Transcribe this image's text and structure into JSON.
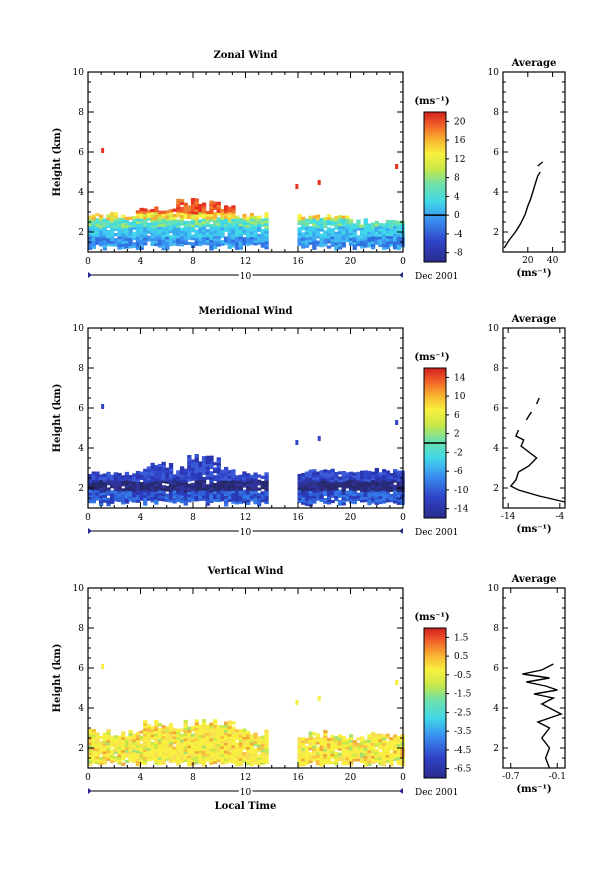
{
  "chart_data": [
    {
      "type": "heatmap",
      "title": "Zonal Wind",
      "xlabel": "",
      "ylabel": "Height (km)",
      "xlim": [
        0,
        24
      ],
      "ylim": [
        1,
        10
      ],
      "x_ticks": [
        "0",
        "4",
        "8",
        "12",
        "16",
        "20",
        "0"
      ],
      "y_ticks": [
        "2",
        "4",
        "6",
        "8",
        "10"
      ],
      "date_axis": {
        "day": "10",
        "label": "Dec 2001"
      },
      "colorbar": {
        "unit": "(ms⁻¹)",
        "ticks": [
          "-8",
          "-4",
          "0",
          "4",
          "8",
          "12",
          "16",
          "20"
        ],
        "range": [
          -10,
          22
        ],
        "zero_line_at": 0
      },
      "data_coverage": {
        "gaps_hours": [
          [
            13.5,
            15.8
          ]
        ],
        "height_range_km": [
          1.0,
          3.5
        ]
      },
      "profile": {
        "title": "Average",
        "xlabel": "(ms⁻¹)",
        "x_ticks": [
          "20",
          "40"
        ],
        "xlim": [
          0,
          50
        ],
        "y_ticks": [
          "2",
          "4",
          "6",
          "8",
          "10"
        ],
        "ylim": [
          1,
          10
        ],
        "segments": [
          [
            [
              1,
              1.2
            ],
            [
              5,
              1.6
            ],
            [
              10,
              2.0
            ],
            [
              14,
              2.4
            ],
            [
              18,
              2.9
            ],
            [
              20,
              3.3
            ],
            [
              22,
              3.6
            ],
            [
              24,
              4.0
            ],
            [
              26,
              4.4
            ],
            [
              28,
              4.8
            ],
            [
              30,
              5.0
            ]
          ],
          [
            [
              28,
              5.3
            ],
            [
              32,
              5.5
            ]
          ]
        ]
      }
    },
    {
      "type": "heatmap",
      "title": "Meridional Wind",
      "xlabel": "",
      "ylabel": "Height (km)",
      "xlim": [
        0,
        24
      ],
      "ylim": [
        1,
        10
      ],
      "x_ticks": [
        "0",
        "4",
        "8",
        "12",
        "16",
        "20",
        "0"
      ],
      "y_ticks": [
        "2",
        "4",
        "6",
        "8",
        "10"
      ],
      "date_axis": {
        "day": "10",
        "label": "Dec 2001"
      },
      "colorbar": {
        "unit": "(ms⁻¹)",
        "ticks": [
          "-14",
          "-10",
          "-6",
          "-2",
          "2",
          "6",
          "10",
          "14"
        ],
        "range": [
          -16,
          16
        ],
        "zero_line_at": 0
      },
      "data_coverage": {
        "gaps_hours": [
          [
            13.5,
            15.8
          ]
        ],
        "height_range_km": [
          1.0,
          3.5
        ]
      },
      "profile": {
        "title": "Average",
        "xlabel": "(ms⁻¹)",
        "x_ticks": [
          "-14",
          "-4"
        ],
        "xlim": [
          -15,
          -3
        ],
        "y_ticks": [
          "2",
          "4",
          "6",
          "8",
          "10"
        ],
        "ylim": [
          1,
          10
        ],
        "segments": [
          [
            [
              -3.0,
              1.3
            ],
            [
              -8,
              1.6
            ],
            [
              -12,
              1.9
            ],
            [
              -13.5,
              2.1
            ],
            [
              -12.5,
              2.4
            ],
            [
              -12,
              2.8
            ],
            [
              -10,
              3.1
            ],
            [
              -8.5,
              3.5
            ],
            [
              -10,
              3.8
            ],
            [
              -11.5,
              4.1
            ],
            [
              -11,
              4.4
            ],
            [
              -12.5,
              4.6
            ],
            [
              -12,
              4.9
            ]
          ],
          [
            [
              -10.5,
              5.4
            ],
            [
              -9.5,
              5.8
            ]
          ],
          [
            [
              -8.5,
              6.2
            ],
            [
              -8,
              6.5
            ]
          ]
        ]
      }
    },
    {
      "type": "heatmap",
      "title": "Vertical Wind",
      "xlabel": "Local Time",
      "ylabel": "Height (km)",
      "xlim": [
        0,
        24
      ],
      "ylim": [
        1,
        10
      ],
      "x_ticks": [
        "0",
        "4",
        "8",
        "12",
        "16",
        "20",
        "0"
      ],
      "y_ticks": [
        "2",
        "4",
        "6",
        "8",
        "10"
      ],
      "date_axis": {
        "day": "10",
        "label": "Dec 2001"
      },
      "colorbar": {
        "unit": "(ms⁻¹)",
        "ticks": [
          "-6.5",
          "-4.5",
          "-3.5",
          "-2.5",
          "-1.5",
          "-0.5",
          "0.5",
          "1.5"
        ],
        "range": [
          -7,
          2
        ],
        "zero_line_at": null
      },
      "data_coverage": {
        "gaps_hours": [
          [
            13.5,
            15.8
          ]
        ],
        "height_range_km": [
          1.0,
          3.5
        ]
      },
      "profile": {
        "title": "Average",
        "xlabel": "(ms⁻¹)",
        "x_ticks": [
          "-0.7",
          "-0.1"
        ],
        "xlim": [
          -0.8,
          0.0
        ],
        "y_ticks": [
          "2",
          "4",
          "6",
          "8",
          "10"
        ],
        "ylim": [
          1,
          10
        ],
        "segments": [
          [
            [
              -0.2,
              1.0
            ],
            [
              -0.25,
              1.5
            ],
            [
              -0.2,
              2.0
            ],
            [
              -0.3,
              2.5
            ],
            [
              -0.2,
              3.0
            ],
            [
              -0.35,
              3.3
            ],
            [
              -0.05,
              3.7
            ],
            [
              -0.3,
              4.2
            ],
            [
              -0.15,
              4.5
            ],
            [
              -0.4,
              4.7
            ],
            [
              -0.1,
              4.9
            ],
            [
              -0.25,
              5.1
            ],
            [
              -0.5,
              5.3
            ],
            [
              -0.2,
              5.5
            ],
            [
              -0.55,
              5.7
            ],
            [
              -0.3,
              5.9
            ],
            [
              -0.15,
              6.2
            ]
          ]
        ]
      }
    }
  ]
}
